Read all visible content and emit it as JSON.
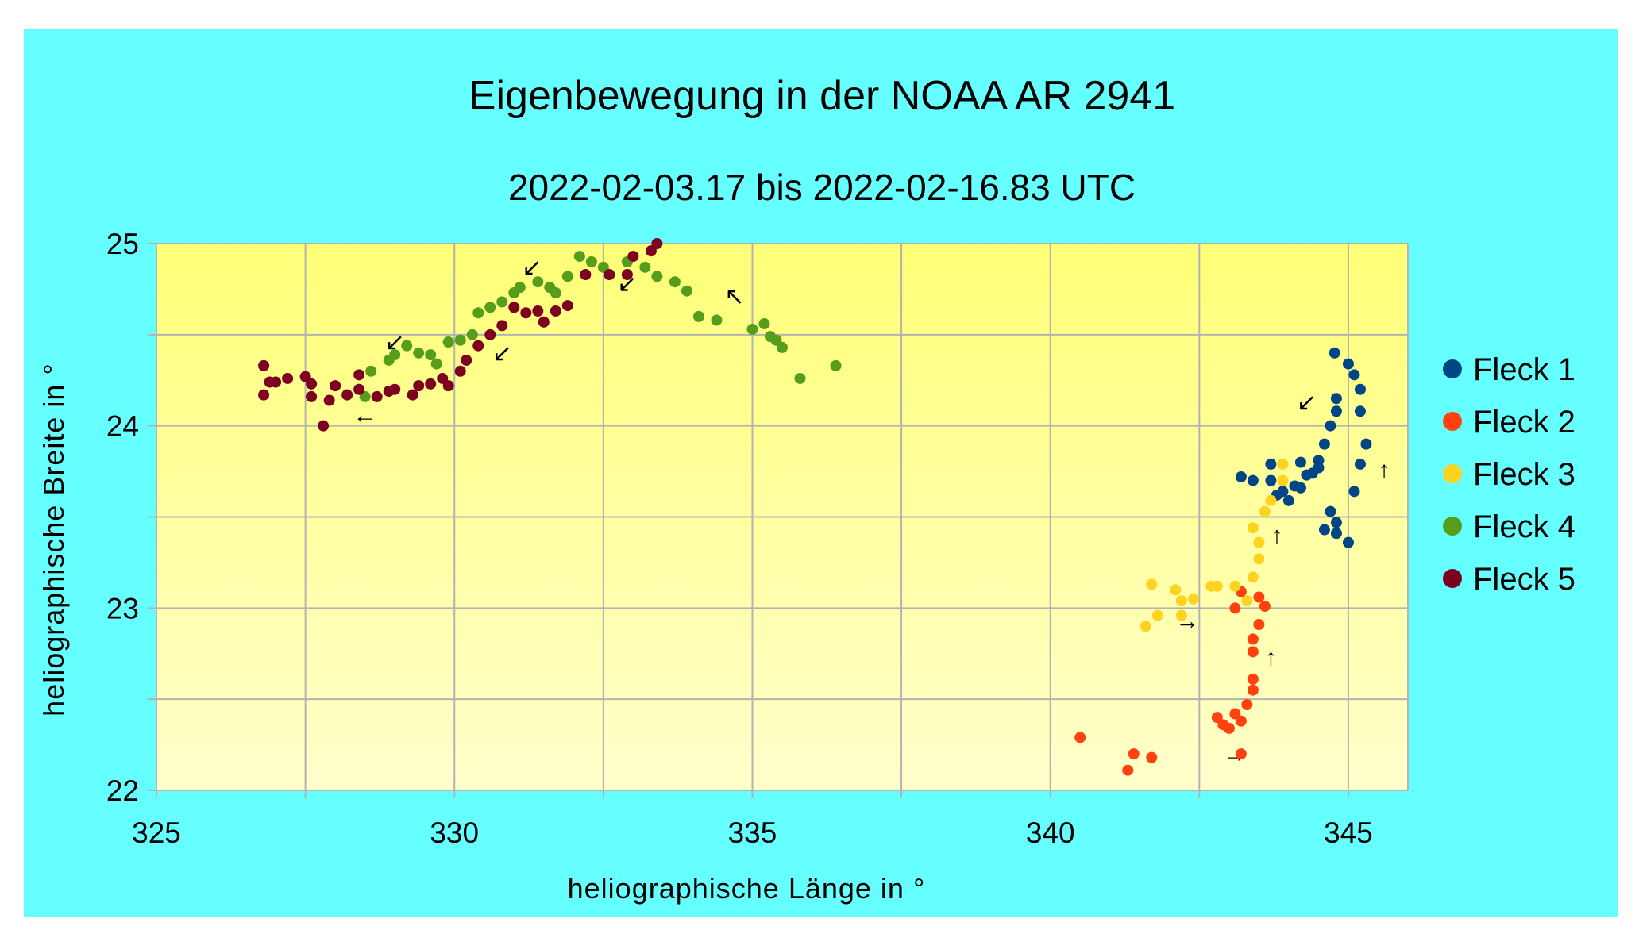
{
  "chart_data": {
    "type": "scatter",
    "title": "Eigenbewegung in der NOAA  AR 2941",
    "subtitle": "2022-02-03.17 bis 2022-02-16.83 UTC",
    "xlabel": "heliographische Länge in °",
    "ylabel": "heliographische Breite in °",
    "xlim": [
      325,
      346
    ],
    "ylim": [
      22,
      25
    ],
    "xticks": [
      325,
      330,
      335,
      340,
      345
    ],
    "yticks": [
      22,
      23,
      24,
      25
    ],
    "x_grid_step": 2.5,
    "y_grid_step": 0.5,
    "grid": true,
    "legend_position": "right",
    "colors": {
      "background": "#66ffff",
      "plot_top": "#ffff77",
      "plot_bottom": "#ffffcc",
      "grid": "#b3b3b3"
    },
    "series": [
      {
        "name": "Fleck 1",
        "color": "#004586",
        "points": [
          [
            344.77,
            24.4
          ],
          [
            345.0,
            24.34
          ],
          [
            345.1,
            24.28
          ],
          [
            345.2,
            24.2
          ],
          [
            344.8,
            24.15
          ],
          [
            344.8,
            24.08
          ],
          [
            344.7,
            24.0
          ],
          [
            345.2,
            24.08
          ],
          [
            345.3,
            23.9
          ],
          [
            345.2,
            23.79
          ],
          [
            345.1,
            23.64
          ],
          [
            344.6,
            23.9
          ],
          [
            344.5,
            23.81
          ],
          [
            344.3,
            23.73
          ],
          [
            344.1,
            23.67
          ],
          [
            343.9,
            23.64
          ],
          [
            343.7,
            23.7
          ],
          [
            343.7,
            23.79
          ],
          [
            343.2,
            23.72
          ],
          [
            343.4,
            23.7
          ],
          [
            344.0,
            23.59
          ],
          [
            344.7,
            23.53
          ],
          [
            344.6,
            23.43
          ],
          [
            344.8,
            23.47
          ],
          [
            344.8,
            23.41
          ],
          [
            345.0,
            23.36
          ],
          [
            344.2,
            23.8
          ],
          [
            344.4,
            23.74
          ],
          [
            343.8,
            23.62
          ],
          [
            344.2,
            23.66
          ],
          [
            344.5,
            23.77
          ]
        ]
      },
      {
        "name": "Fleck 2",
        "color": "#ff420e",
        "points": [
          [
            340.5,
            22.29
          ],
          [
            341.4,
            22.2
          ],
          [
            341.7,
            22.18
          ],
          [
            341.3,
            22.11
          ],
          [
            343.2,
            22.2
          ],
          [
            342.8,
            22.4
          ],
          [
            343.0,
            22.34
          ],
          [
            343.2,
            22.38
          ],
          [
            342.9,
            22.36
          ],
          [
            343.1,
            22.42
          ],
          [
            343.3,
            22.47
          ],
          [
            343.4,
            22.55
          ],
          [
            343.4,
            22.61
          ],
          [
            343.4,
            22.76
          ],
          [
            343.4,
            22.83
          ],
          [
            343.5,
            22.91
          ],
          [
            343.6,
            23.01
          ],
          [
            343.1,
            23.0
          ],
          [
            343.2,
            23.09
          ],
          [
            343.5,
            23.06
          ]
        ]
      },
      {
        "name": "Fleck 3",
        "color": "#ffd320",
        "points": [
          [
            341.7,
            23.13
          ],
          [
            342.1,
            23.1
          ],
          [
            342.2,
            23.04
          ],
          [
            342.4,
            23.05
          ],
          [
            342.2,
            22.96
          ],
          [
            341.8,
            22.96
          ],
          [
            341.6,
            22.9
          ],
          [
            342.7,
            23.12
          ],
          [
            342.8,
            23.12
          ],
          [
            343.1,
            23.12
          ],
          [
            343.3,
            23.04
          ],
          [
            343.4,
            23.17
          ],
          [
            343.5,
            23.27
          ],
          [
            343.5,
            23.36
          ],
          [
            343.4,
            23.44
          ],
          [
            343.6,
            23.53
          ],
          [
            343.7,
            23.59
          ],
          [
            343.9,
            23.79
          ],
          [
            343.9,
            23.7
          ]
        ]
      },
      {
        "name": "Fleck 4",
        "color": "#579d1c",
        "points": [
          [
            328.6,
            24.3
          ],
          [
            328.5,
            24.16
          ],
          [
            328.9,
            24.36
          ],
          [
            329.0,
            24.39
          ],
          [
            329.2,
            24.44
          ],
          [
            329.4,
            24.4
          ],
          [
            329.6,
            24.39
          ],
          [
            329.7,
            24.34
          ],
          [
            329.9,
            24.46
          ],
          [
            330.1,
            24.47
          ],
          [
            330.3,
            24.5
          ],
          [
            330.4,
            24.62
          ],
          [
            330.6,
            24.65
          ],
          [
            330.8,
            24.68
          ],
          [
            331.0,
            24.73
          ],
          [
            331.1,
            24.76
          ],
          [
            331.4,
            24.79
          ],
          [
            331.6,
            24.76
          ],
          [
            331.7,
            24.73
          ],
          [
            331.9,
            24.82
          ],
          [
            332.1,
            24.93
          ],
          [
            332.3,
            24.9
          ],
          [
            332.5,
            24.87
          ],
          [
            332.9,
            24.9
          ],
          [
            333.2,
            24.87
          ],
          [
            333.4,
            24.82
          ],
          [
            333.7,
            24.79
          ],
          [
            333.9,
            24.74
          ],
          [
            334.1,
            24.6
          ],
          [
            334.4,
            24.58
          ],
          [
            335.0,
            24.53
          ],
          [
            335.2,
            24.56
          ],
          [
            335.3,
            24.49
          ],
          [
            335.4,
            24.47
          ],
          [
            335.5,
            24.43
          ],
          [
            335.8,
            24.26
          ],
          [
            336.4,
            24.33
          ]
        ]
      },
      {
        "name": "Fleck 5",
        "color": "#7e0021",
        "points": [
          [
            326.8,
            24.33
          ],
          [
            326.8,
            24.17
          ],
          [
            326.9,
            24.24
          ],
          [
            327.0,
            24.24
          ],
          [
            327.2,
            24.26
          ],
          [
            327.5,
            24.27
          ],
          [
            327.6,
            24.23
          ],
          [
            327.6,
            24.16
          ],
          [
            327.8,
            24.0
          ],
          [
            327.9,
            24.14
          ],
          [
            328.0,
            24.22
          ],
          [
            328.2,
            24.17
          ],
          [
            328.4,
            24.2
          ],
          [
            328.4,
            24.28
          ],
          [
            328.7,
            24.16
          ],
          [
            328.9,
            24.19
          ],
          [
            329.0,
            24.2
          ],
          [
            329.3,
            24.17
          ],
          [
            329.4,
            24.22
          ],
          [
            329.6,
            24.23
          ],
          [
            329.8,
            24.26
          ],
          [
            329.9,
            24.22
          ],
          [
            330.1,
            24.3
          ],
          [
            330.2,
            24.36
          ],
          [
            330.4,
            24.44
          ],
          [
            330.6,
            24.5
          ],
          [
            330.8,
            24.55
          ],
          [
            331.0,
            24.65
          ],
          [
            331.2,
            24.62
          ],
          [
            331.4,
            24.63
          ],
          [
            331.5,
            24.57
          ],
          [
            331.7,
            24.63
          ],
          [
            331.9,
            24.66
          ],
          [
            332.2,
            24.83
          ],
          [
            332.6,
            24.83
          ],
          [
            332.9,
            24.83
          ],
          [
            333.0,
            24.93
          ],
          [
            333.3,
            24.96
          ],
          [
            333.4,
            25.0
          ]
        ]
      }
    ],
    "annotations": [
      {
        "text": "↙",
        "x": 331.3,
        "y": 24.87
      },
      {
        "text": "↙",
        "x": 332.9,
        "y": 24.78
      },
      {
        "text": "↖",
        "x": 334.7,
        "y": 24.71
      },
      {
        "text": "↙",
        "x": 329.0,
        "y": 24.46
      },
      {
        "text": "↙",
        "x": 330.8,
        "y": 24.4
      },
      {
        "text": "←",
        "x": 328.5,
        "y": 24.06
      },
      {
        "text": "↙",
        "x": 344.3,
        "y": 24.13
      },
      {
        "text": "↑",
        "x": 345.6,
        "y": 23.76
      },
      {
        "text": "↑",
        "x": 343.8,
        "y": 23.4
      },
      {
        "text": "↑",
        "x": 343.7,
        "y": 22.73
      },
      {
        "text": "→",
        "x": 342.3,
        "y": 22.93
      },
      {
        "text": "→",
        "x": 343.1,
        "y": 22.2
      }
    ]
  }
}
